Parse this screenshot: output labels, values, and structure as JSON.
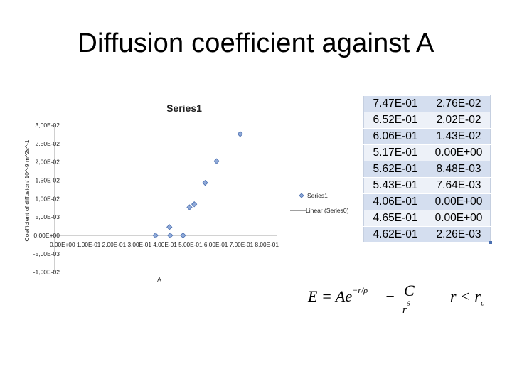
{
  "slide": {
    "title": "Diffusion coefficient against A"
  },
  "chart_data": {
    "type": "scatter",
    "title": "Series1",
    "xlabel": "A",
    "ylabel": "Coefficient of diffusion/ 10^-9 m^2s^-1",
    "xlim": [
      0,
      1
    ],
    "ylim": [
      -0.01,
      0.03
    ],
    "y_ticks": [
      "3,00E-02",
      "2,50E-02",
      "2,00E-02",
      "1,50E-02",
      "1,00E-02",
      "5,00E-03",
      "0,00E+00",
      "-5,00E-03",
      "-1,00E-02"
    ],
    "x_tick_labels": [
      "0,00E+00",
      "1,00E-01",
      "2,00E-01",
      "3,00E-01",
      "4,00E-01",
      "5,00E-01",
      "6,00E-01",
      "7,00E-01",
      "8,00E-01"
    ],
    "series": [
      {
        "name": "Series1",
        "x": [
          0.747,
          0.652,
          0.606,
          0.517,
          0.562,
          0.543,
          0.406,
          0.465,
          0.462
        ],
        "y": [
          0.0276,
          0.0202,
          0.0143,
          0.0,
          0.00848,
          0.00764,
          0.0,
          0.0,
          0.00226
        ]
      }
    ],
    "legend": {
      "position": "right",
      "entries": [
        {
          "label": "Series1",
          "marker": "diamond",
          "color": "#5b7fbf"
        },
        {
          "label": "Linear (Series0)",
          "marker": "line",
          "color": "#000000"
        }
      ]
    },
    "colors": {
      "marker_fill": "#8fa9d8",
      "marker_stroke": "#4a6fb0"
    }
  },
  "table": {
    "rows": [
      [
        "7.47E-01",
        "2.76E-02"
      ],
      [
        "6.52E-01",
        "2.02E-02"
      ],
      [
        "6.06E-01",
        "1.43E-02"
      ],
      [
        "5.17E-01",
        "0.00E+00"
      ],
      [
        "5.62E-01",
        "8.48E-03"
      ],
      [
        "5.43E-01",
        "7.64E-03"
      ],
      [
        "4.06E-01",
        "0.00E+00"
      ],
      [
        "4.65E-01",
        "0.00E+00"
      ],
      [
        "4.62E-01",
        "2.26E-03"
      ]
    ]
  },
  "formula": {
    "lhs": "E = Ae",
    "exponent": "−r/ρ",
    "minus": "−",
    "numerator": "C",
    "denominator": "r",
    "den_power": "6",
    "condition": "r < r",
    "condition_sub": "c"
  }
}
